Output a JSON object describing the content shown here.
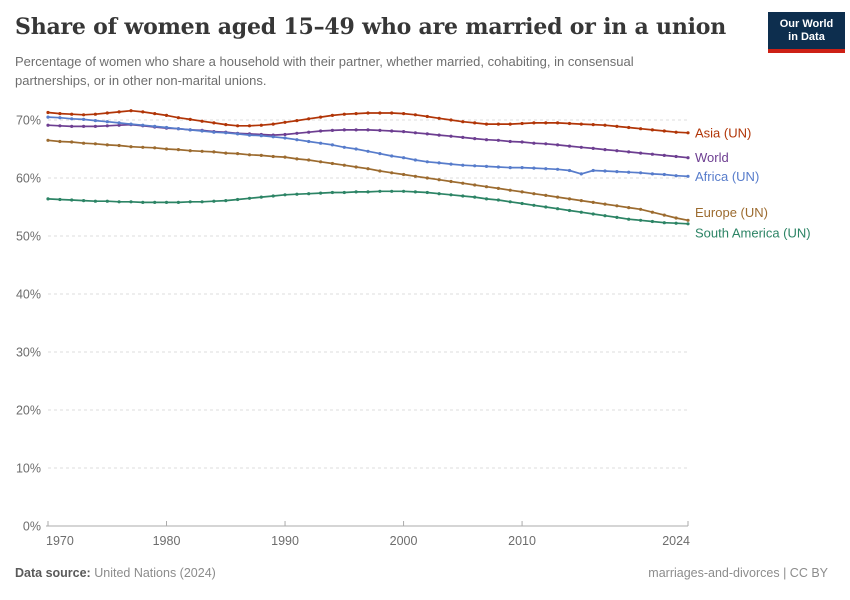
{
  "logo": {
    "line1": "Our World",
    "line2": "in Data",
    "bg_color": "#0d2e4e",
    "accent_color": "#cd2015"
  },
  "footer": {
    "datasource_label": "Data source:",
    "datasource_value": "United Nations (2024)",
    "right_text": "marriages-and-divorces | CC BY"
  },
  "chart_data": {
    "type": "line",
    "title": "Share of women aged 15–49 who are married or in a union",
    "subtitle_lines": [
      "Percentage of women who share a household with their partner, whether married, cohabiting, in consensual",
      "partnerships, or in other non-marital unions."
    ],
    "xlabel": "",
    "ylabel": "",
    "ylim": [
      0,
      74
    ],
    "yticks": [
      0,
      10,
      20,
      30,
      40,
      50,
      60,
      70
    ],
    "ytick_suffix": "%",
    "xticks": [
      1970,
      1980,
      1990,
      2000,
      2010,
      2024
    ],
    "grid": "horizontal-dashed",
    "legend_position": "end-of-line-labels",
    "axis_color": "#ababab",
    "grid_color": "#dcdcdc",
    "tick_label_color": "#6d6d6d",
    "x": [
      1970,
      1971,
      1972,
      1973,
      1974,
      1975,
      1976,
      1977,
      1978,
      1979,
      1980,
      1981,
      1982,
      1983,
      1984,
      1985,
      1986,
      1987,
      1988,
      1989,
      1990,
      1991,
      1992,
      1993,
      1994,
      1995,
      1996,
      1997,
      1998,
      1999,
      2000,
      2001,
      2002,
      2003,
      2004,
      2005,
      2006,
      2007,
      2008,
      2009,
      2010,
      2011,
      2012,
      2013,
      2014,
      2015,
      2016,
      2017,
      2018,
      2019,
      2020,
      2021,
      2022,
      2023,
      2024
    ],
    "series": [
      {
        "name": "Asia (UN)",
        "color": "#b13507",
        "values": [
          71.3,
          71.1,
          71.0,
          70.9,
          71.0,
          71.2,
          71.4,
          71.6,
          71.4,
          71.1,
          70.8,
          70.4,
          70.1,
          69.8,
          69.5,
          69.2,
          69.0,
          69.0,
          69.1,
          69.3,
          69.6,
          69.9,
          70.2,
          70.5,
          70.8,
          71.0,
          71.1,
          71.2,
          71.2,
          71.2,
          71.1,
          70.9,
          70.6,
          70.3,
          70.0,
          69.7,
          69.5,
          69.3,
          69.3,
          69.3,
          69.4,
          69.5,
          69.5,
          69.5,
          69.4,
          69.3,
          69.2,
          69.1,
          68.9,
          68.7,
          68.5,
          68.3,
          68.1,
          67.9,
          67.8
        ]
      },
      {
        "name": "World",
        "color": "#6d3e91",
        "values": [
          69.1,
          69.0,
          68.9,
          68.9,
          68.9,
          69.0,
          69.1,
          69.2,
          69.0,
          68.8,
          68.6,
          68.5,
          68.3,
          68.2,
          68.0,
          67.9,
          67.7,
          67.6,
          67.5,
          67.4,
          67.5,
          67.7,
          67.9,
          68.1,
          68.2,
          68.3,
          68.3,
          68.3,
          68.2,
          68.1,
          68.0,
          67.8,
          67.6,
          67.4,
          67.2,
          67.0,
          66.8,
          66.6,
          66.5,
          66.3,
          66.2,
          66.0,
          65.9,
          65.7,
          65.5,
          65.3,
          65.1,
          64.9,
          64.7,
          64.5,
          64.3,
          64.1,
          63.9,
          63.7,
          63.5
        ]
      },
      {
        "name": "Africa (UN)",
        "color": "#577ccb",
        "values": [
          70.5,
          70.4,
          70.2,
          70.1,
          69.9,
          69.7,
          69.5,
          69.3,
          69.1,
          68.9,
          68.7,
          68.5,
          68.3,
          68.1,
          67.9,
          67.8,
          67.6,
          67.4,
          67.3,
          67.1,
          66.9,
          66.6,
          66.3,
          66.0,
          65.7,
          65.3,
          65.0,
          64.6,
          64.2,
          63.8,
          63.5,
          63.1,
          62.8,
          62.6,
          62.4,
          62.2,
          62.1,
          62.0,
          61.9,
          61.8,
          61.8,
          61.7,
          61.6,
          61.5,
          61.3,
          60.7,
          61.3,
          61.2,
          61.1,
          61.0,
          60.9,
          60.7,
          60.6,
          60.4,
          60.3
        ]
      },
      {
        "name": "Europe (UN)",
        "color": "#9c6b2f",
        "values": [
          66.5,
          66.3,
          66.2,
          66.0,
          65.9,
          65.7,
          65.6,
          65.4,
          65.3,
          65.2,
          65.0,
          64.9,
          64.7,
          64.6,
          64.5,
          64.3,
          64.2,
          64.0,
          63.9,
          63.7,
          63.6,
          63.3,
          63.1,
          62.8,
          62.5,
          62.2,
          61.9,
          61.6,
          61.2,
          60.9,
          60.6,
          60.3,
          60.0,
          59.7,
          59.4,
          59.1,
          58.8,
          58.5,
          58.2,
          57.9,
          57.6,
          57.3,
          57.0,
          56.7,
          56.4,
          56.1,
          55.8,
          55.5,
          55.2,
          54.9,
          54.6,
          54.1,
          53.6,
          53.1,
          52.7
        ]
      },
      {
        "name": "South America (UN)",
        "color": "#2c8465",
        "values": [
          56.4,
          56.3,
          56.2,
          56.1,
          56.0,
          56.0,
          55.9,
          55.9,
          55.8,
          55.8,
          55.8,
          55.8,
          55.9,
          55.9,
          56.0,
          56.1,
          56.3,
          56.5,
          56.7,
          56.9,
          57.1,
          57.2,
          57.3,
          57.4,
          57.5,
          57.5,
          57.6,
          57.6,
          57.7,
          57.7,
          57.7,
          57.6,
          57.5,
          57.3,
          57.1,
          56.9,
          56.7,
          56.4,
          56.2,
          55.9,
          55.6,
          55.3,
          55.0,
          54.7,
          54.4,
          54.1,
          53.8,
          53.5,
          53.2,
          52.9,
          52.7,
          52.5,
          52.3,
          52.2,
          52.1
        ]
      }
    ]
  }
}
